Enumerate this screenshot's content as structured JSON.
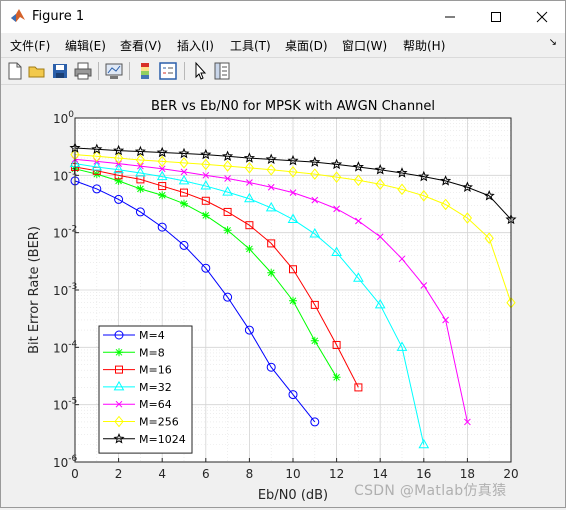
{
  "window": {
    "title": "Figure 1",
    "controls": [
      "minimize",
      "maximize",
      "close"
    ]
  },
  "menubar": {
    "items": [
      "文件(F)",
      "编辑(E)",
      "查看(V)",
      "插入(I)",
      "工具(T)",
      "桌面(D)",
      "窗口(W)",
      "帮助(H)"
    ],
    "overflow_icon": "chevron-down-icon"
  },
  "toolbar": {
    "icons": [
      "new-figure-icon",
      "open-file-icon",
      "save-icon",
      "print-icon",
      "link-plot-icon",
      "colorbar-icon",
      "legend-icon",
      "pointer-icon",
      "property-editor-icon"
    ]
  },
  "watermark": "CSDN @Matlab仿真猿",
  "chart_data": {
    "type": "line",
    "title": "BER vs Eb/N0 for MPSK with AWGN Channel",
    "xlabel": "Eb/N0 (dB)",
    "ylabel": "Bit Error Rate (BER)",
    "xlim": [
      0,
      20
    ],
    "ylim": [
      1e-06,
      1
    ],
    "yscale": "log",
    "xticks": [
      "0",
      "2",
      "4",
      "6",
      "8",
      "10",
      "12",
      "14",
      "16",
      "18",
      "20"
    ],
    "yticks": [
      {
        "base": "10",
        "exp": "-6"
      },
      {
        "base": "10",
        "exp": "-5"
      },
      {
        "base": "10",
        "exp": "-4"
      },
      {
        "base": "10",
        "exp": "-3"
      },
      {
        "base": "10",
        "exp": "-2"
      },
      {
        "base": "10",
        "exp": "-1"
      },
      {
        "base": "10",
        "exp": "0"
      }
    ],
    "grid": true,
    "minor_grid": true,
    "legend_position": "bottom-left",
    "series": [
      {
        "name": "M=4",
        "color": "#0000ff",
        "marker": "circle",
        "x": [
          0,
          1,
          2,
          3,
          4,
          5,
          6,
          7,
          8,
          9,
          10,
          11
        ],
        "y": [
          0.08,
          0.058,
          0.038,
          0.023,
          0.0125,
          0.006,
          0.0024,
          0.00075,
          0.0002,
          4.5e-05,
          1.5e-05,
          5e-06
        ]
      },
      {
        "name": "M=8",
        "color": "#00ff00",
        "marker": "asterisk",
        "x": [
          0,
          1,
          2,
          3,
          4,
          5,
          6,
          7,
          8,
          9,
          10,
          11,
          12
        ],
        "y": [
          0.13,
          0.105,
          0.08,
          0.058,
          0.045,
          0.032,
          0.02,
          0.011,
          0.0052,
          0.002,
          0.00065,
          0.00013,
          3e-05
        ]
      },
      {
        "name": "M=16",
        "color": "#ff0000",
        "marker": "square",
        "x": [
          0,
          1,
          2,
          3,
          4,
          5,
          6,
          7,
          8,
          9,
          10,
          11,
          12,
          13
        ],
        "y": [
          0.14,
          0.12,
          0.1,
          0.085,
          0.065,
          0.05,
          0.036,
          0.023,
          0.0135,
          0.0065,
          0.0023,
          0.00055,
          0.00011,
          2e-05
        ]
      },
      {
        "name": "M=32",
        "color": "#00ffff",
        "marker": "triangle",
        "x": [
          0,
          1,
          2,
          3,
          4,
          5,
          6,
          7,
          8,
          9,
          10,
          11,
          12,
          13,
          14,
          15,
          16
        ],
        "y": [
          0.16,
          0.14,
          0.125,
          0.11,
          0.095,
          0.08,
          0.065,
          0.051,
          0.039,
          0.027,
          0.017,
          0.0095,
          0.0045,
          0.0016,
          0.00055,
          0.0001,
          2e-06
        ]
      },
      {
        "name": "M=64",
        "color": "#ff00ff",
        "marker": "x",
        "x": [
          0,
          1,
          2,
          3,
          4,
          5,
          6,
          7,
          8,
          9,
          10,
          11,
          12,
          13,
          14,
          15,
          16,
          17,
          18
        ],
        "y": [
          0.19,
          0.175,
          0.16,
          0.145,
          0.13,
          0.115,
          0.1,
          0.088,
          0.075,
          0.062,
          0.05,
          0.037,
          0.026,
          0.016,
          0.0085,
          0.0035,
          0.0012,
          0.0003,
          5e-06
        ]
      },
      {
        "name": "M=256",
        "color": "#ffff00",
        "marker": "diamond",
        "x": [
          0,
          1,
          2,
          3,
          4,
          5,
          6,
          7,
          8,
          9,
          10,
          11,
          12,
          13,
          14,
          15,
          16,
          17,
          18,
          19,
          20
        ],
        "y": [
          0.23,
          0.215,
          0.2,
          0.185,
          0.175,
          0.165,
          0.155,
          0.145,
          0.135,
          0.125,
          0.115,
          0.105,
          0.093,
          0.082,
          0.07,
          0.057,
          0.044,
          0.031,
          0.018,
          0.008,
          0.0006
        ]
      },
      {
        "name": "M=1024",
        "color": "#000000",
        "marker": "pentagram",
        "x": [
          0,
          1,
          2,
          3,
          4,
          5,
          6,
          7,
          8,
          9,
          10,
          11,
          12,
          13,
          14,
          15,
          16,
          17,
          18,
          19,
          20
        ],
        "y": [
          0.3,
          0.285,
          0.27,
          0.26,
          0.25,
          0.24,
          0.23,
          0.215,
          0.2,
          0.19,
          0.18,
          0.17,
          0.155,
          0.14,
          0.125,
          0.11,
          0.095,
          0.08,
          0.062,
          0.044,
          0.017
        ]
      }
    ]
  }
}
